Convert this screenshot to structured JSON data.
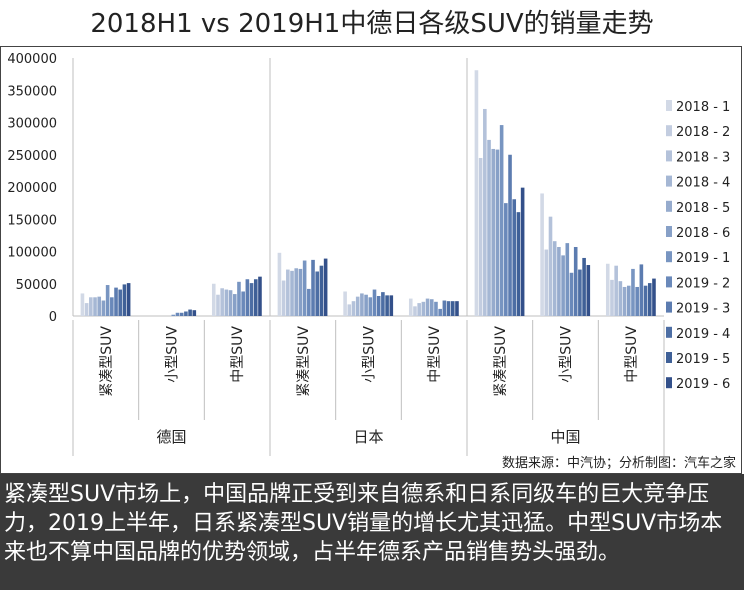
{
  "title": "2018H1 vs 2019H1中德日各级SUV的销量走势",
  "source": "数据来源：中汽协；分析制图：汽车之家",
  "caption": "紧凑型SUV市场上，中国品牌正受到来自德系和日系同级车的巨大竞争压力，2019上半年，日系紧凑型SUV销量的增长尤其迅猛。中型SUV市场本来也不算中国品牌的优势领域，占半年德系产品销售势头强劲。",
  "chart_data": {
    "type": "bar",
    "ylim": [
      0,
      400000
    ],
    "yticks": [
      0,
      50000,
      100000,
      150000,
      200000,
      250000,
      300000,
      350000,
      400000
    ],
    "groups": [
      "德国",
      "日本",
      "中国"
    ],
    "categories": [
      "紧凑型SUV",
      "小型SUV",
      "中型SUV"
    ],
    "series": [
      {
        "name": "2018 - 1",
        "color": "#d2d9e6",
        "values": [
          [
            35000,
            0,
            50000
          ],
          [
            98000,
            38000,
            27000
          ],
          [
            381000,
            190000,
            81000
          ]
        ]
      },
      {
        "name": "2018 - 2",
        "color": "#c3cde0",
        "values": [
          [
            20000,
            0,
            33000
          ],
          [
            55000,
            18000,
            15000
          ],
          [
            245000,
            103000,
            56000
          ]
        ]
      },
      {
        "name": "2018 - 3",
        "color": "#b4c2da",
        "values": [
          [
            29000,
            0,
            43000
          ],
          [
            72000,
            23000,
            20000
          ],
          [
            321000,
            154000,
            78000
          ]
        ]
      },
      {
        "name": "2018 - 4",
        "color": "#a5b7d4",
        "values": [
          [
            29000,
            0,
            41000
          ],
          [
            70000,
            30000,
            22000
          ],
          [
            273000,
            116000,
            54000
          ]
        ]
      },
      {
        "name": "2018 - 5",
        "color": "#96abcd",
        "values": [
          [
            30000,
            0,
            40000
          ],
          [
            74000,
            35000,
            27000
          ],
          [
            259000,
            107000,
            45000
          ]
        ]
      },
      {
        "name": "2018 - 6",
        "color": "#87a0c7",
        "values": [
          [
            24000,
            0,
            34000
          ],
          [
            73000,
            33000,
            26000
          ],
          [
            258000,
            94000,
            47000
          ]
        ]
      },
      {
        "name": "2019 - 1",
        "color": "#7895c1",
        "values": [
          [
            48000,
            2000,
            53000
          ],
          [
            86000,
            29000,
            22000
          ],
          [
            296000,
            113000,
            73000
          ]
        ]
      },
      {
        "name": "2019 - 2",
        "color": "#6a89ba",
        "values": [
          [
            29000,
            5000,
            38000
          ],
          [
            42000,
            41000,
            11000
          ],
          [
            175000,
            67000,
            45000
          ]
        ]
      },
      {
        "name": "2019 - 3",
        "color": "#5c7cb0",
        "values": [
          [
            44000,
            5000,
            57000
          ],
          [
            87000,
            31000,
            24000
          ],
          [
            250000,
            107000,
            80000
          ]
        ]
      },
      {
        "name": "2019 - 4",
        "color": "#4d6ea4",
        "values": [
          [
            41000,
            7000,
            51000
          ],
          [
            69000,
            37000,
            23000
          ],
          [
            181000,
            72000,
            47000
          ]
        ]
      },
      {
        "name": "2019 - 5",
        "color": "#3f6097",
        "values": [
          [
            49000,
            10000,
            57000
          ],
          [
            78000,
            32000,
            23000
          ],
          [
            161000,
            90000,
            51000
          ]
        ]
      },
      {
        "name": "2019 - 6",
        "color": "#33508a",
        "values": [
          [
            51000,
            9000,
            61000
          ],
          [
            89000,
            32000,
            23000
          ],
          [
            199000,
            79000,
            58000
          ]
        ]
      }
    ]
  }
}
